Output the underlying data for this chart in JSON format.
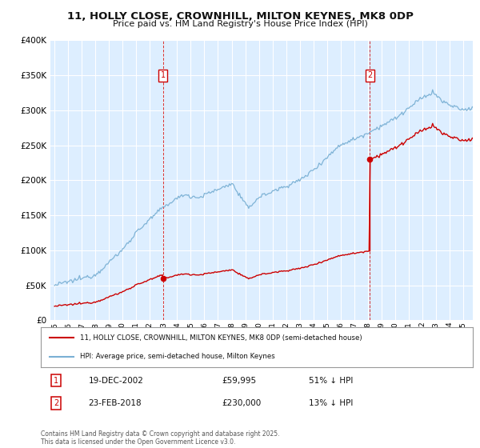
{
  "title": "11, HOLLY CLOSE, CROWNHILL, MILTON KEYNES, MK8 0DP",
  "subtitle": "Price paid vs. HM Land Registry's House Price Index (HPI)",
  "legend_label_red": "11, HOLLY CLOSE, CROWNHILL, MILTON KEYNES, MK8 0DP (semi-detached house)",
  "legend_label_blue": "HPI: Average price, semi-detached house, Milton Keynes",
  "sale1_date": "19-DEC-2002",
  "sale1_price": "£59,995",
  "sale1_note": "51% ↓ HPI",
  "sale2_date": "23-FEB-2018",
  "sale2_price": "£230,000",
  "sale2_note": "13% ↓ HPI",
  "footer": "Contains HM Land Registry data © Crown copyright and database right 2025.\nThis data is licensed under the Open Government Licence v3.0.",
  "color_red": "#cc0000",
  "color_blue": "#7ab0d4",
  "ylim": [
    0,
    400000
  ],
  "yticks": [
    0,
    50000,
    100000,
    150000,
    200000,
    250000,
    300000,
    350000,
    400000
  ],
  "xlim_start": 1994.7,
  "xlim_end": 2025.7,
  "sale1_year": 2002.96,
  "sale1_value": 59995,
  "sale2_year": 2018.14,
  "sale2_value": 230000,
  "background_color": "#ddeeff",
  "hpi_base_1995": 50000,
  "hpi_base_ratio": 1.0
}
